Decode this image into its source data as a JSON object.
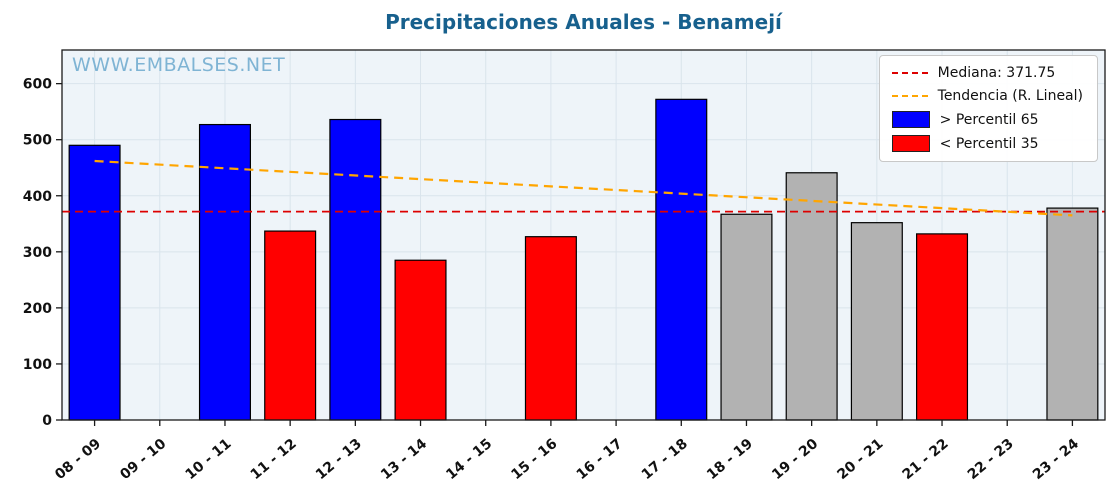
{
  "title": "Precipitaciones Anuales - Benamejí",
  "watermark": "WWW.EMBALSES.NET",
  "legend": {
    "median_label": "Mediana: 371.75",
    "trend_label": "Tendencia (R. Lineal)",
    "above_label": "> Percentil 65",
    "below_label": "< Percentil 35"
  },
  "colors": {
    "above": "#0000ff",
    "below": "#ff0000",
    "normal": "#b2b2b2",
    "bar_edge": "#000000",
    "median": "#dd0000",
    "trend": "#ffa500",
    "title": "#17608d",
    "watermark": "#7fb4d4",
    "plot_bg": "#eef4f9",
    "grid": "#d9e4ec",
    "axis": "#1a1a1a"
  },
  "chart_data": {
    "type": "bar",
    "title": "Precipitaciones Anuales - Benamejí",
    "xlabel": "",
    "ylabel": "",
    "categories": [
      "08 - 09",
      "09 - 10",
      "10 - 11",
      "11 - 12",
      "12 - 13",
      "13 - 14",
      "14 - 15",
      "15 - 16",
      "16 - 17",
      "17 - 18",
      "18 - 19",
      "19 - 20",
      "20 - 21",
      "21 - 22",
      "22 - 23",
      "23 - 24"
    ],
    "values": [
      490,
      null,
      527,
      337,
      536,
      285,
      null,
      327,
      null,
      572,
      367,
      441,
      352,
      332,
      null,
      378
    ],
    "bar_classes": [
      "above",
      null,
      "above",
      "below",
      "above",
      "below",
      null,
      "below",
      null,
      "above",
      "normal",
      "normal",
      "normal",
      "below",
      null,
      "normal"
    ],
    "median": 371.75,
    "trend": {
      "start": 462,
      "end": 365
    },
    "ylim": [
      0,
      660
    ],
    "yticks": [
      0,
      100,
      200,
      300,
      400,
      500,
      600
    ],
    "grid": true,
    "legend_position": "upper right"
  }
}
